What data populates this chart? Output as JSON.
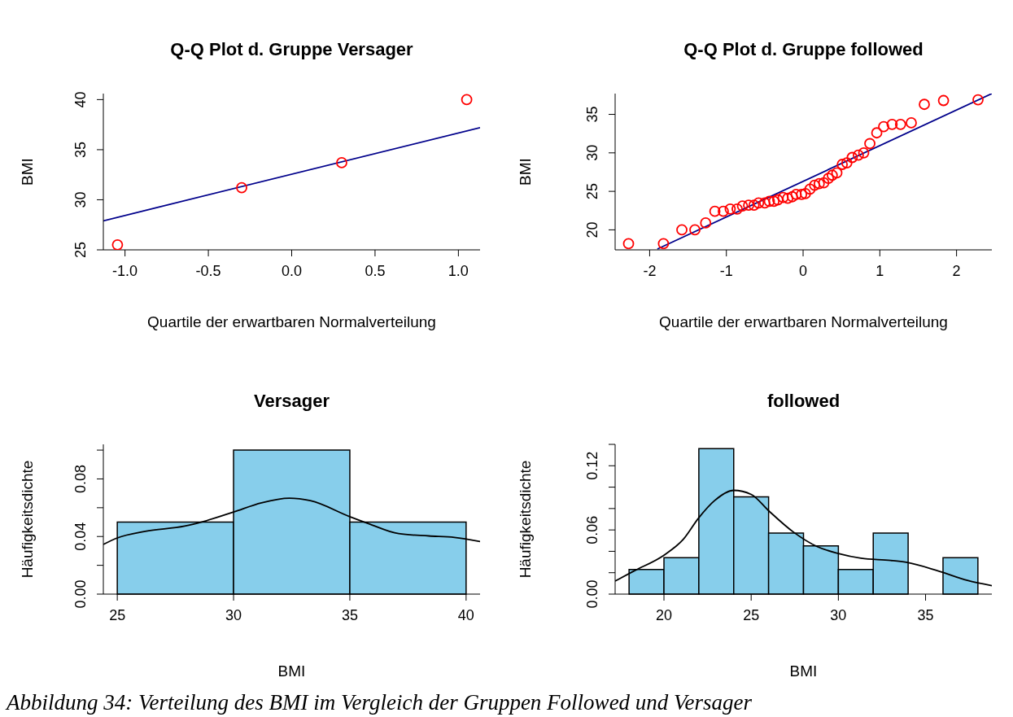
{
  "chart_data": [
    {
      "type": "scatter",
      "title": "Q-Q Plot d. Gruppe Versager",
      "xlabel": "Quartile der erwartbaren Normalverteilung",
      "ylabel": "BMI",
      "xlim": [
        -1.13,
        1.13
      ],
      "ylim": [
        25,
        40.6
      ],
      "xticks": [
        {
          "value": -1,
          "label": "-1.0"
        },
        -0.5,
        {
          "value": 0,
          "label": "0.0"
        },
        0.5,
        {
          "value": 1,
          "label": "1.0"
        }
      ],
      "yticks": [
        25,
        30,
        35,
        40
      ],
      "series": [
        {
          "type": "scatter",
          "color": "#ff0000",
          "marker": "circle",
          "x": [
            -1.045,
            -0.3,
            0.3,
            1.05
          ],
          "values": [
            25.5,
            31.2,
            33.7,
            40
          ]
        },
        {
          "type": "line",
          "color": "#00008b",
          "x": [
            -1.13,
            1.13
          ],
          "values": [
            27.9,
            37.2
          ]
        }
      ]
    },
    {
      "type": "scatter",
      "title": "Q-Q Plot d. Gruppe followed",
      "xlabel": "Quartile der erwartbaren Normalverteilung",
      "ylabel": "BMI",
      "xlim": [
        -2.45,
        2.46
      ],
      "ylim": [
        17.4,
        37.7
      ],
      "xticks": [
        -2,
        -1,
        0,
        1,
        2
      ],
      "yticks": [
        20,
        25,
        30,
        35
      ],
      "series": [
        {
          "type": "scatter",
          "color": "#ff0000",
          "marker": "circle",
          "x": [
            -2.275,
            -1.82,
            -1.58,
            -1.41,
            -1.27,
            -1.15,
            -1.04,
            -0.95,
            -0.86,
            -0.79,
            -0.71,
            -0.64,
            -0.58,
            -0.5,
            -0.44,
            -0.38,
            -0.33,
            -0.26,
            -0.2,
            -0.14,
            -0.09,
            -0.02,
            0.03,
            0.09,
            0.15,
            0.21,
            0.27,
            0.33,
            0.38,
            0.44,
            0.51,
            0.57,
            0.64,
            0.72,
            0.79,
            0.87,
            0.96,
            1.05,
            1.16,
            1.27,
            1.41,
            1.58,
            1.83,
            2.28
          ],
          "values": [
            18.2,
            18.2,
            20.0,
            20.0,
            20.9,
            22.4,
            22.4,
            22.7,
            22.7,
            23.1,
            23.2,
            23.2,
            23.5,
            23.5,
            23.7,
            23.7,
            23.9,
            24.2,
            24.1,
            24.3,
            24.6,
            24.6,
            24.7,
            25.3,
            25.8,
            26.0,
            26.1,
            26.7,
            27.1,
            27.4,
            28.5,
            28.7,
            29.4,
            29.7,
            30.0,
            31.2,
            32.6,
            33.4,
            33.7,
            33.7,
            33.9,
            36.3,
            36.8,
            36.9
          ]
        },
        {
          "type": "line",
          "color": "#00008b",
          "x": [
            -1.9,
            2.46
          ],
          "values": [
            17.5,
            37.7
          ]
        }
      ]
    },
    {
      "type": "histogram",
      "title": "Versager",
      "xlabel": "BMI",
      "ylabel": "Häufigkeitsdichte",
      "bins": [
        25,
        30,
        35,
        40
      ],
      "values": [
        0.05,
        0.1,
        0.05
      ],
      "color": "#87ceeb",
      "xlim": [
        24.4,
        40.6
      ],
      "ylim": [
        0,
        0.104
      ],
      "xticks": [
        25,
        30,
        35,
        40
      ],
      "yticks": [
        {
          "value": 0,
          "label": "0.00"
        },
        {
          "value": 0.02,
          "label": null
        },
        {
          "value": 0.04,
          "label": "0.04"
        },
        {
          "value": 0.06,
          "label": null
        },
        {
          "value": 0.08,
          "label": "0.08"
        },
        {
          "value": 0.1,
          "label": null
        }
      ],
      "series": [
        {
          "type": "line",
          "color": "#000000",
          "x": [
            24.4,
            25,
            26.2,
            27.9,
            28.7,
            30,
            31.2,
            32.4,
            33.3,
            35,
            35.8,
            37.1,
            38.4,
            39.5,
            40.6
          ],
          "values": [
            0.0345,
            0.039,
            0.0436,
            0.0472,
            0.0504,
            0.057,
            0.0634,
            0.0666,
            0.0649,
            0.0538,
            0.049,
            0.042,
            0.0404,
            0.0394,
            0.0365
          ]
        }
      ]
    },
    {
      "type": "histogram",
      "title": "followed",
      "xlabel": "BMI",
      "ylabel": "Häufigkeitsdichte",
      "bins": [
        18,
        20,
        22,
        24,
        26,
        28,
        30,
        32,
        34,
        36,
        38
      ],
      "values": [
        0.023,
        0.034,
        0.136,
        0.091,
        0.057,
        0.045,
        0.023,
        0.057,
        0,
        0.034
      ],
      "color": "#87ceeb",
      "xlim": [
        17.2,
        38.8
      ],
      "ylim": [
        0,
        0.14
      ],
      "xticks": [
        20,
        25,
        30,
        35
      ],
      "yticks": [
        {
          "value": 0,
          "label": "0.00"
        },
        {
          "value": 0.02,
          "label": null
        },
        {
          "value": 0.04,
          "label": null
        },
        {
          "value": 0.06,
          "label": "0.06"
        },
        {
          "value": 0.08,
          "label": null
        },
        {
          "value": 0.1,
          "label": null
        },
        {
          "value": 0.12,
          "label": "0.12"
        },
        {
          "value": 0.14,
          "label": null
        }
      ],
      "series": [
        {
          "type": "line",
          "color": "#000000",
          "x": [
            17.2,
            18.3,
            20,
            21.1,
            22,
            22.9,
            24,
            25,
            26,
            27.4,
            28.8,
            30,
            31.3,
            33,
            33.9,
            35.7,
            37.4,
            38.8
          ],
          "values": [
            0.0122,
            0.0218,
            0.0364,
            0.051,
            0.0714,
            0.0874,
            0.097,
            0.0932,
            0.078,
            0.0583,
            0.0443,
            0.0379,
            0.0335,
            0.0315,
            0.0297,
            0.0218,
            0.0128,
            0.0079
          ]
        }
      ],
      "annotations": [
        "Abbildung 34: Verteilung des BMI im Vergleich der Gruppen Followed und Versager"
      ]
    }
  ]
}
